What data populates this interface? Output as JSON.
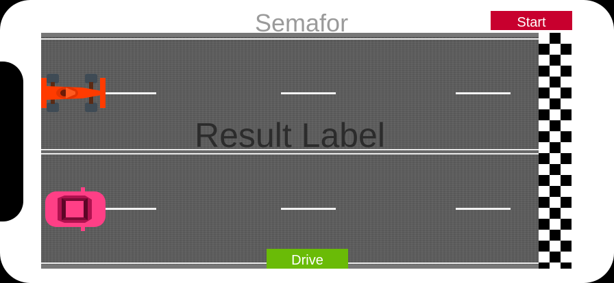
{
  "title": "Semafor",
  "buttons": {
    "start_label": "Start",
    "drive_label": "Drive"
  },
  "result_label": "Result Label",
  "colors": {
    "start_button": "#c8002e",
    "drive_button": "#6abb07",
    "race_car": "#ff3b00",
    "sedan_car": "#ff3f86",
    "track": "#5d5d5d"
  },
  "icons": {
    "car_top": "race-car-icon",
    "car_bottom": "pink-car-icon",
    "finish": "checkered-finish-line"
  }
}
